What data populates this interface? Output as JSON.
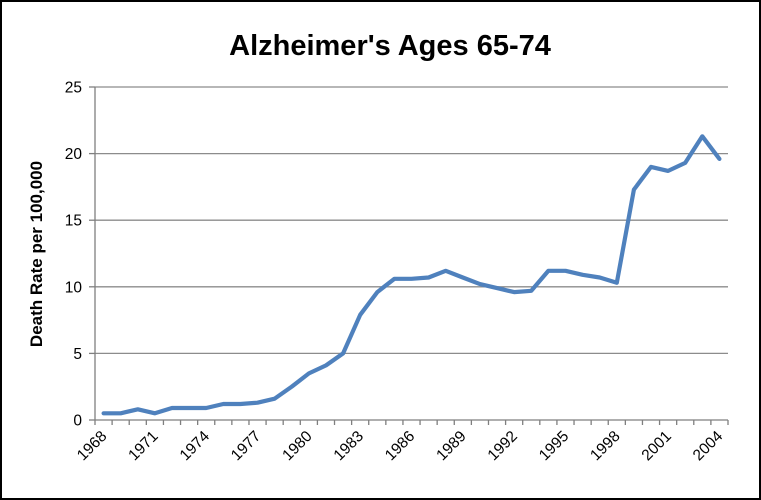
{
  "chart_data": {
    "type": "line",
    "title": "Alzheimer's Ages 65-74",
    "ylabel": "Death Rate per 100,000",
    "xlabel": "",
    "x": [
      1968,
      1969,
      1970,
      1971,
      1972,
      1973,
      1974,
      1975,
      1976,
      1977,
      1978,
      1979,
      1980,
      1981,
      1982,
      1983,
      1984,
      1985,
      1986,
      1987,
      1988,
      1989,
      1990,
      1991,
      1992,
      1993,
      1994,
      1995,
      1996,
      1997,
      1998,
      1999,
      2000,
      2001,
      2002,
      2003,
      2004
    ],
    "values": [
      0.5,
      0.5,
      0.8,
      0.5,
      0.9,
      0.9,
      0.9,
      1.2,
      1.2,
      1.3,
      1.6,
      2.5,
      3.5,
      4.1,
      5.0,
      7.9,
      9.6,
      10.6,
      10.6,
      10.7,
      11.2,
      10.7,
      10.2,
      9.9,
      9.6,
      9.7,
      11.2,
      11.2,
      10.9,
      10.7,
      10.3,
      17.3,
      19.0,
      18.7,
      19.3,
      21.3,
      19.6
    ],
    "ylim": [
      0,
      25
    ],
    "y_ticks": [
      0,
      5,
      10,
      15,
      20,
      25
    ],
    "x_label_every": 3,
    "x_tick_labels": [
      "1968",
      "1971",
      "1974",
      "1977",
      "1980",
      "1983",
      "1986",
      "1989",
      "1992",
      "1995",
      "1998",
      "2001",
      "2004"
    ],
    "grid": "horizontal",
    "legend": "none",
    "line_color": "#4F81BD",
    "gridline_color": "#8C8C8C",
    "axis_color": "#7F7F7F",
    "text_color": "#000000",
    "background_color": "#FFFFFF",
    "border_color": "#000000"
  }
}
